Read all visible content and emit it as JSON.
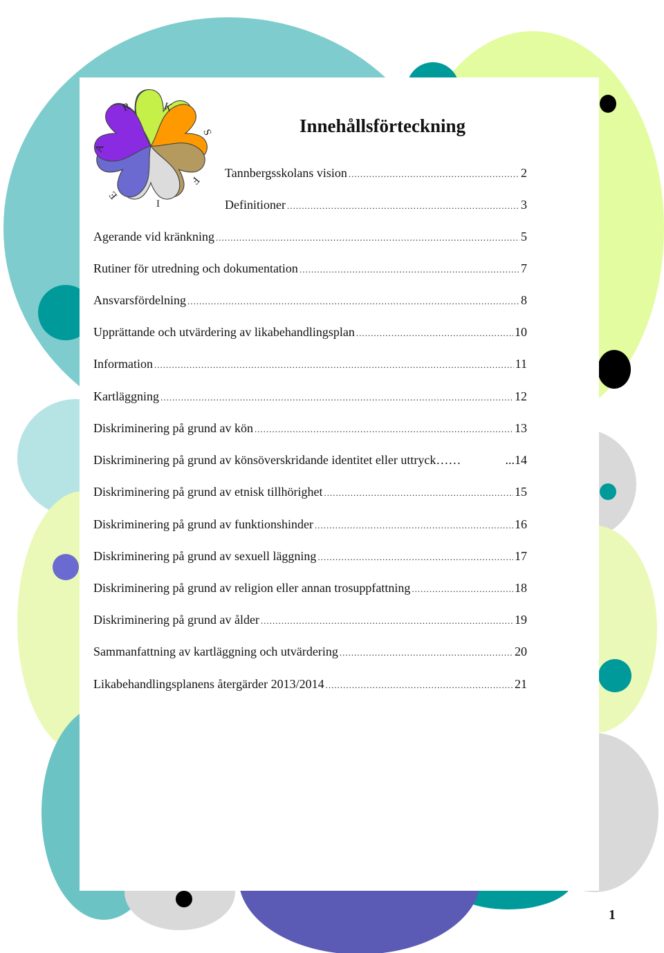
{
  "colors": {
    "teal_light": "#7ecccd",
    "teal_dark": "#009a9a",
    "lime": "#e3fca0",
    "lime_soft": "#eaf9b7",
    "grey": "#d9d9d9",
    "purple": "#5b5bb5",
    "purple_bright": "#7030d8",
    "aqua_pale": "#b6e3e4",
    "orange": "#ff9900",
    "tan": "#b49a5f",
    "green_yellow": "#c5f047",
    "black": "#000000"
  },
  "logo": {
    "icon": "heart-flower-logo",
    "letters": [
      "R",
      "K",
      "S",
      "F",
      "I",
      "E",
      "A"
    ]
  },
  "document": {
    "title": "Innehållsförteckning",
    "page_number": "1",
    "toc": [
      {
        "text": "Tannbergsskolans vision",
        "page": "2"
      },
      {
        "text": "Definitioner",
        "page": "3"
      },
      {
        "text": "Agerande vid kränkning",
        "page": "5"
      },
      {
        "text": "Rutiner för utredning och dokumentation",
        "page": "7"
      },
      {
        "text": "Ansvarsfördelning",
        "page": "8"
      },
      {
        "text": "Upprättande och utvärdering av likabehandlingsplan",
        "page": "10"
      },
      {
        "text": "Information",
        "page": "11"
      },
      {
        "text": "Kartläggning",
        "page": "12"
      },
      {
        "text": "Diskriminering på grund av kön",
        "page": "13"
      },
      {
        "text": "Diskriminering på grund av könsöverskridande identitet eller uttryck……",
        "page": "...14"
      },
      {
        "text": "Diskriminering på grund av etnisk tillhörighet",
        "page": "15"
      },
      {
        "text": "Diskriminering på grund av funktionshinder",
        "page": "16"
      },
      {
        "text": "Diskriminering på grund av sexuell läggning",
        "page": "17"
      },
      {
        "text": "Diskriminering på grund av religion eller annan trosuppfattning",
        "page": "18"
      },
      {
        "text": "Diskriminering på grund av ålder",
        "page": "19"
      },
      {
        "text": "Sammanfattning av kartläggning och utvärdering",
        "page": "20"
      },
      {
        "text": "Likabehandlingsplanens återgärder 2013/2014",
        "page": "21"
      }
    ]
  }
}
